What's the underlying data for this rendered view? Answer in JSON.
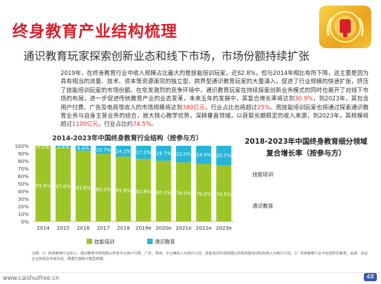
{
  "header": {
    "title": "终身教育产业结构梳理",
    "subtitle": "通识教育玩家探索创新业态和线下市场，市场份额持续扩张"
  },
  "body": {
    "p1": "2019年，在终身教育行业中收入规模占比最大的是技能培训玩家，近82.8%，但与2014年相比有所下降，这主要是因为具有相当的流量、技术、资本等资源渐完的独立型、跨界型通识教育玩家的大量涌入，促进了行业规模的快速扩张，挤压了技能培训玩家的市场份额。在愈发激烈的竞争环境中，通识教育玩家在持续探索创新业务模式的同时也展开了对线下市场的布局，进一步促进传统教育产业的业态变革，未来五年的发展中，其复合增长率将达到30.9%，到2023年，其包含用户付费、广告及电商等收入的市场规模将达到380亿元，行业占比也将超过25%。而技能培训玩家也将通过探索通识教育业务与自身主营业务的结合，放大核心教学优势，深耕垂直领域，以获取长期稳定的收入来源，到2023年，其规模将超过1100亿元，行业占比约74.5%。"
  },
  "right_panel": {
    "title_line1": "2018-2023年中国终身教育细分领域",
    "title_line2": "复合增长率（按参与方）",
    "row1": "技能培训",
    "row2": "通识教育"
  },
  "chart_data": {
    "type": "bar",
    "title": "2014-2023年中国终身教育行业结构（按参与方）",
    "categories": [
      "2014",
      "2015",
      "2016",
      "2017",
      "2018",
      "2019e",
      "2020e",
      "2021e",
      "2022e",
      "2023e"
    ],
    "series": [
      {
        "name": "技能培训",
        "values": [
          99.9,
          97.6,
          93.6,
          89.3,
          85.8,
          82.8,
          80.3,
          78.0,
          76.0,
          74.5
        ],
        "color": "#9dc528"
      },
      {
        "name": "通识教育",
        "values": [
          0.1,
          2.4,
          6.4,
          10.7,
          14.2,
          17.2,
          19.7,
          22.0,
          24.0,
          25.5
        ],
        "color": "#27b5d8"
      }
    ],
    "data_labels": {
      "skill": [
        "99.9%",
        "97.6%",
        "93.6%",
        "89.3%",
        "85.8%",
        "82.8%",
        "80.3%",
        "78.0%",
        "76.0%",
        "74.5%"
      ],
      "general": [
        "0.1%",
        "2.4%",
        "6.4%",
        "10.7%",
        "14.2%",
        "17.2%",
        "19.7%",
        "22.0%",
        "24.0%",
        "25.5%"
      ]
    },
    "y_ticks": [
      "0%",
      "10%",
      "20%",
      "30%",
      "40%",
      "50%",
      "60%",
      "70%",
      "80%",
      "90%",
      "100%"
    ],
    "ylim": [
      0,
      100
    ],
    "stacked": true,
    "legend_position": "bottom",
    "grid": false
  },
  "notes": {
    "text": "注释：1）终身教育行业收入：通识教育市场规模以所有平台用户付费、广告、电商、平台等收入为统计口径；技能培训市场规模以所有技能培训机构收入为统计口径。2）终身教育行业不包括学历教育。来源：综合企业财报及专家访谈，根据艾瑞统计模型核算。"
  },
  "footer": {
    "url": "www.caishuifree.cn",
    "page": "48"
  },
  "colors": {
    "title_red": "#d8202a",
    "skill_green": "#9dc528",
    "general_blue": "#27b5d8"
  }
}
